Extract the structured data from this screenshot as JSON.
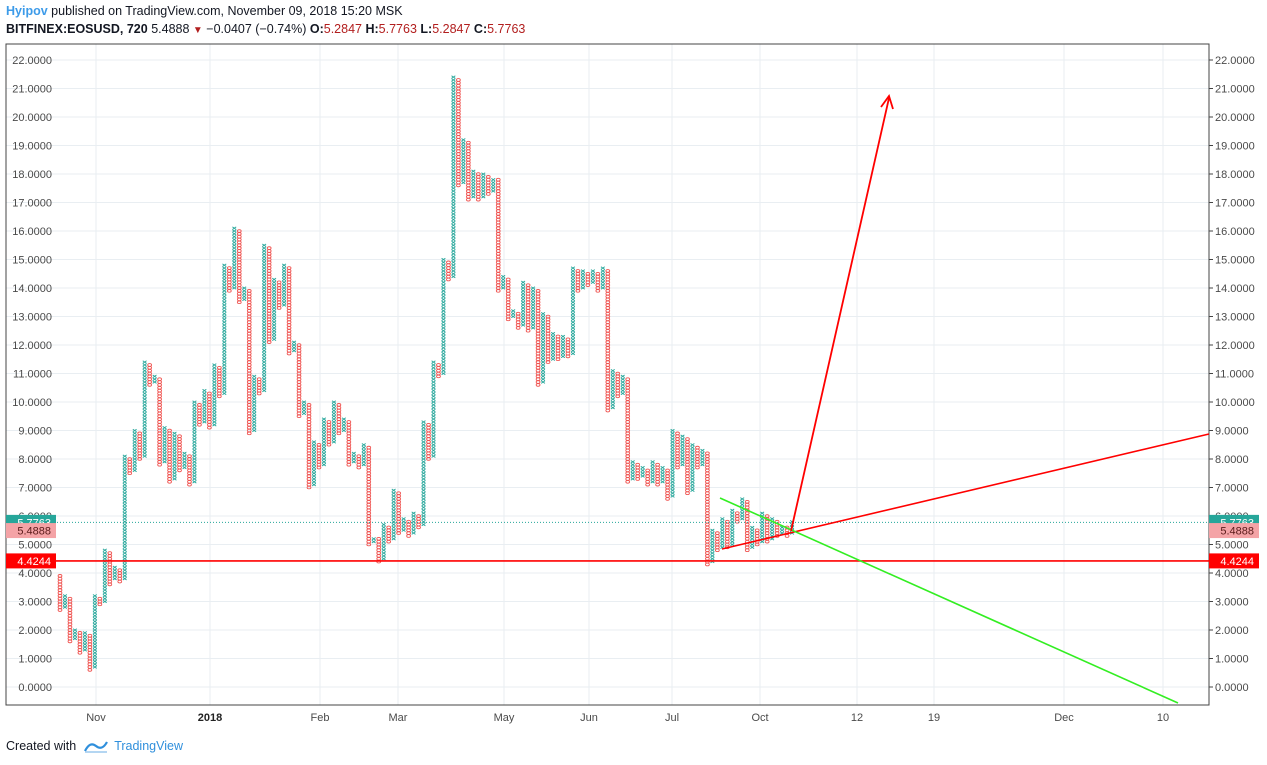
{
  "header": {
    "author": "Hyipov",
    "published_text": "published on TradingView.com, November 09, 2018 15:20 MSK",
    "symbol": "BITFINEX:EOSUSD, 720",
    "last": "5.4888",
    "change": "−0.0407 (−0.74%)",
    "o_label": "O:",
    "o_value": "5.2847",
    "h_label": "H:",
    "h_value": "5.7763",
    "l_label": "L:",
    "l_value": "5.2847",
    "c_label": "C:",
    "c_value": "5.7763"
  },
  "footer": {
    "created_with": "Created with",
    "brand": "TradingView"
  },
  "colors": {
    "up": "#26a69a",
    "down": "#ef5350",
    "trend_red": "#ff0000",
    "trend_green": "#33ee22",
    "grid": "#e9eef2",
    "tag_current": "#26a69a",
    "tag_prev": "#f4a3a6",
    "tag_level": "#ff0000"
  },
  "chart_data": {
    "type": "point-and-figure",
    "y_axis": {
      "ticks": [
        "0.0000",
        "1.0000",
        "2.0000",
        "3.0000",
        "4.0000",
        "5.0000",
        "6.0000",
        "7.0000",
        "8.0000",
        "9.0000",
        "10.0000",
        "11.0000",
        "12.0000",
        "13.0000",
        "14.0000",
        "15.0000",
        "16.0000",
        "17.0000",
        "18.0000",
        "19.0000",
        "20.0000",
        "21.0000",
        "22.0000"
      ],
      "range": [
        -0.4,
        22.5
      ]
    },
    "x_axis": {
      "ticks": [
        {
          "label": "Nov",
          "bold": false
        },
        {
          "label": "2018",
          "bold": true
        },
        {
          "label": "Feb",
          "bold": false
        },
        {
          "label": "Mar",
          "bold": false
        },
        {
          "label": "May",
          "bold": false
        },
        {
          "label": "Jun",
          "bold": false
        },
        {
          "label": "Jul",
          "bold": false
        },
        {
          "label": "Oct",
          "bold": false
        },
        {
          "label": "12",
          "bold": false
        },
        {
          "label": "19",
          "bold": false
        },
        {
          "label": "Dec",
          "bold": false
        },
        {
          "label": "10",
          "bold": false
        }
      ]
    },
    "price_tags": [
      {
        "value": 5.7763,
        "label": "5.7763",
        "kind": "current"
      },
      {
        "value": 5.4888,
        "label": "5.4888",
        "kind": "previous"
      },
      {
        "value": 4.4244,
        "label": "4.4244",
        "kind": "level"
      }
    ],
    "horizontal_line": 4.4244,
    "columns": [
      {
        "t": "O",
        "lo": 2.7,
        "hi": 3.9
      },
      {
        "t": "X",
        "lo": 2.8,
        "hi": 3.2
      },
      {
        "t": "O",
        "lo": 1.6,
        "hi": 3.1
      },
      {
        "t": "X",
        "lo": 1.7,
        "hi": 2.0
      },
      {
        "t": "O",
        "lo": 1.2,
        "hi": 1.9
      },
      {
        "t": "X",
        "lo": 1.3,
        "hi": 1.9
      },
      {
        "t": "O",
        "lo": 0.6,
        "hi": 1.8
      },
      {
        "t": "X",
        "lo": 0.7,
        "hi": 3.2
      },
      {
        "t": "O",
        "lo": 2.9,
        "hi": 3.1
      },
      {
        "t": "X",
        "lo": 3.0,
        "hi": 4.8
      },
      {
        "t": "O",
        "lo": 3.6,
        "hi": 4.7
      },
      {
        "t": "X",
        "lo": 3.8,
        "hi": 4.2
      },
      {
        "t": "O",
        "lo": 3.7,
        "hi": 4.1
      },
      {
        "t": "X",
        "lo": 3.8,
        "hi": 8.1
      },
      {
        "t": "O",
        "lo": 7.5,
        "hi": 8.0
      },
      {
        "t": "X",
        "lo": 7.6,
        "hi": 9.0
      },
      {
        "t": "O",
        "lo": 8.0,
        "hi": 8.9
      },
      {
        "t": "X",
        "lo": 8.1,
        "hi": 11.4
      },
      {
        "t": "O",
        "lo": 10.6,
        "hi": 11.3
      },
      {
        "t": "X",
        "lo": 10.7,
        "hi": 10.9
      },
      {
        "t": "O",
        "lo": 7.8,
        "hi": 10.8
      },
      {
        "t": "X",
        "lo": 7.9,
        "hi": 9.1
      },
      {
        "t": "O",
        "lo": 7.2,
        "hi": 9.0
      },
      {
        "t": "X",
        "lo": 7.3,
        "hi": 8.9
      },
      {
        "t": "O",
        "lo": 7.6,
        "hi": 8.8
      },
      {
        "t": "X",
        "lo": 7.7,
        "hi": 8.2
      },
      {
        "t": "O",
        "lo": 7.1,
        "hi": 8.1
      },
      {
        "t": "X",
        "lo": 7.2,
        "hi": 10.0
      },
      {
        "t": "O",
        "lo": 9.2,
        "hi": 9.9
      },
      {
        "t": "X",
        "lo": 9.3,
        "hi": 10.4
      },
      {
        "t": "O",
        "lo": 9.1,
        "hi": 10.3
      },
      {
        "t": "X",
        "lo": 9.2,
        "hi": 11.3
      },
      {
        "t": "O",
        "lo": 10.2,
        "hi": 11.2
      },
      {
        "t": "X",
        "lo": 10.3,
        "hi": 14.8
      },
      {
        "t": "O",
        "lo": 13.9,
        "hi": 14.7
      },
      {
        "t": "X",
        "lo": 14.0,
        "hi": 16.1
      },
      {
        "t": "O",
        "lo": 13.5,
        "hi": 16.0
      },
      {
        "t": "X",
        "lo": 13.6,
        "hi": 14.0
      },
      {
        "t": "O",
        "lo": 8.9,
        "hi": 13.9
      },
      {
        "t": "X",
        "lo": 9.0,
        "hi": 10.9
      },
      {
        "t": "O",
        "lo": 10.3,
        "hi": 10.8
      },
      {
        "t": "X",
        "lo": 10.4,
        "hi": 15.5
      },
      {
        "t": "O",
        "lo": 12.1,
        "hi": 15.4
      },
      {
        "t": "X",
        "lo": 12.2,
        "hi": 14.3
      },
      {
        "t": "O",
        "lo": 13.3,
        "hi": 14.2
      },
      {
        "t": "X",
        "lo": 13.4,
        "hi": 14.8
      },
      {
        "t": "O",
        "lo": 11.7,
        "hi": 14.7
      },
      {
        "t": "X",
        "lo": 11.8,
        "hi": 12.1
      },
      {
        "t": "O",
        "lo": 9.5,
        "hi": 12.0
      },
      {
        "t": "X",
        "lo": 9.6,
        "hi": 10.0
      },
      {
        "t": "O",
        "lo": 7.0,
        "hi": 9.9
      },
      {
        "t": "X",
        "lo": 7.1,
        "hi": 8.6
      },
      {
        "t": "O",
        "lo": 7.7,
        "hi": 8.5
      },
      {
        "t": "X",
        "lo": 7.8,
        "hi": 9.4
      },
      {
        "t": "O",
        "lo": 8.5,
        "hi": 9.3
      },
      {
        "t": "X",
        "lo": 8.6,
        "hi": 10.0
      },
      {
        "t": "O",
        "lo": 8.9,
        "hi": 9.9
      },
      {
        "t": "X",
        "lo": 9.0,
        "hi": 9.4
      },
      {
        "t": "O",
        "lo": 7.8,
        "hi": 9.3
      },
      {
        "t": "X",
        "lo": 7.9,
        "hi": 8.2
      },
      {
        "t": "O",
        "lo": 7.7,
        "hi": 8.1
      },
      {
        "t": "X",
        "lo": 7.8,
        "hi": 8.5
      },
      {
        "t": "O",
        "lo": 5.0,
        "hi": 8.4
      },
      {
        "t": "X",
        "lo": 5.1,
        "hi": 5.2
      },
      {
        "t": "O",
        "lo": 4.4,
        "hi": 5.2
      },
      {
        "t": "X",
        "lo": 4.5,
        "hi": 5.7
      },
      {
        "t": "O",
        "lo": 5.1,
        "hi": 5.6
      },
      {
        "t": "X",
        "lo": 5.2,
        "hi": 6.9
      },
      {
        "t": "O",
        "lo": 5.4,
        "hi": 6.8
      },
      {
        "t": "X",
        "lo": 5.5,
        "hi": 5.9
      },
      {
        "t": "O",
        "lo": 5.3,
        "hi": 5.8
      },
      {
        "t": "X",
        "lo": 5.4,
        "hi": 6.1
      },
      {
        "t": "O",
        "lo": 5.6,
        "hi": 6.0
      },
      {
        "t": "X",
        "lo": 5.7,
        "hi": 9.3
      },
      {
        "t": "O",
        "lo": 8.0,
        "hi": 9.2
      },
      {
        "t": "X",
        "lo": 8.1,
        "hi": 11.4
      },
      {
        "t": "O",
        "lo": 10.9,
        "hi": 11.3
      },
      {
        "t": "X",
        "lo": 11.0,
        "hi": 15.0
      },
      {
        "t": "O",
        "lo": 14.3,
        "hi": 14.9
      },
      {
        "t": "X",
        "lo": 14.4,
        "hi": 21.4
      },
      {
        "t": "O",
        "lo": 17.6,
        "hi": 21.3
      },
      {
        "t": "X",
        "lo": 17.7,
        "hi": 19.2
      },
      {
        "t": "O",
        "lo": 17.1,
        "hi": 19.1
      },
      {
        "t": "X",
        "lo": 17.2,
        "hi": 18.1
      },
      {
        "t": "O",
        "lo": 17.1,
        "hi": 18.0
      },
      {
        "t": "X",
        "lo": 17.2,
        "hi": 18.0
      },
      {
        "t": "O",
        "lo": 17.3,
        "hi": 17.9
      },
      {
        "t": "X",
        "lo": 17.4,
        "hi": 17.8
      },
      {
        "t": "O",
        "lo": 13.9,
        "hi": 17.8
      },
      {
        "t": "X",
        "lo": 14.0,
        "hi": 14.4
      },
      {
        "t": "O",
        "lo": 12.9,
        "hi": 14.3
      },
      {
        "t": "X",
        "lo": 13.0,
        "hi": 13.2
      },
      {
        "t": "O",
        "lo": 12.6,
        "hi": 13.1
      },
      {
        "t": "X",
        "lo": 12.7,
        "hi": 14.2
      },
      {
        "t": "O",
        "lo": 12.5,
        "hi": 14.1
      },
      {
        "t": "X",
        "lo": 12.6,
        "hi": 14.0
      },
      {
        "t": "O",
        "lo": 10.6,
        "hi": 13.9
      },
      {
        "t": "X",
        "lo": 10.7,
        "hi": 13.1
      },
      {
        "t": "O",
        "lo": 11.4,
        "hi": 13.0
      },
      {
        "t": "X",
        "lo": 11.5,
        "hi": 12.4
      },
      {
        "t": "O",
        "lo": 11.5,
        "hi": 12.3
      },
      {
        "t": "X",
        "lo": 11.6,
        "hi": 12.3
      },
      {
        "t": "O",
        "lo": 11.6,
        "hi": 12.2
      },
      {
        "t": "X",
        "lo": 11.7,
        "hi": 14.7
      },
      {
        "t": "O",
        "lo": 13.9,
        "hi": 14.6
      },
      {
        "t": "X",
        "lo": 14.0,
        "hi": 14.6
      },
      {
        "t": "O",
        "lo": 14.1,
        "hi": 14.5
      },
      {
        "t": "X",
        "lo": 14.2,
        "hi": 14.6
      },
      {
        "t": "O",
        "lo": 13.9,
        "hi": 14.5
      },
      {
        "t": "X",
        "lo": 14.0,
        "hi": 14.7
      },
      {
        "t": "O",
        "lo": 9.7,
        "hi": 14.6
      },
      {
        "t": "X",
        "lo": 9.8,
        "hi": 11.1
      },
      {
        "t": "O",
        "lo": 10.2,
        "hi": 11.0
      },
      {
        "t": "X",
        "lo": 10.3,
        "hi": 10.9
      },
      {
        "t": "O",
        "lo": 7.2,
        "hi": 10.8
      },
      {
        "t": "X",
        "lo": 7.3,
        "hi": 7.9
      },
      {
        "t": "O",
        "lo": 7.3,
        "hi": 7.8
      },
      {
        "t": "X",
        "lo": 7.4,
        "hi": 7.7
      },
      {
        "t": "O",
        "lo": 7.1,
        "hi": 7.6
      },
      {
        "t": "X",
        "lo": 7.2,
        "hi": 7.9
      },
      {
        "t": "O",
        "lo": 7.1,
        "hi": 7.8
      },
      {
        "t": "X",
        "lo": 7.2,
        "hi": 7.7
      },
      {
        "t": "O",
        "lo": 6.6,
        "hi": 7.6
      },
      {
        "t": "X",
        "lo": 6.7,
        "hi": 9.0
      },
      {
        "t": "O",
        "lo": 7.7,
        "hi": 8.9
      },
      {
        "t": "X",
        "lo": 7.8,
        "hi": 8.8
      },
      {
        "t": "O",
        "lo": 6.8,
        "hi": 8.7
      },
      {
        "t": "X",
        "lo": 6.9,
        "hi": 8.5
      },
      {
        "t": "O",
        "lo": 7.7,
        "hi": 8.4
      },
      {
        "t": "X",
        "lo": 7.8,
        "hi": 8.3
      },
      {
        "t": "O",
        "lo": 4.3,
        "hi": 8.2
      },
      {
        "t": "X",
        "lo": 4.4,
        "hi": 5.5
      },
      {
        "t": "O",
        "lo": 4.8,
        "hi": 5.4
      },
      {
        "t": "X",
        "lo": 4.9,
        "hi": 5.9
      },
      {
        "t": "O",
        "lo": 4.9,
        "hi": 5.8
      },
      {
        "t": "X",
        "lo": 5.0,
        "hi": 6.2
      },
      {
        "t": "O",
        "lo": 5.8,
        "hi": 6.1
      },
      {
        "t": "X",
        "lo": 5.9,
        "hi": 6.6
      },
      {
        "t": "O",
        "lo": 4.8,
        "hi": 6.5
      },
      {
        "t": "X",
        "lo": 4.9,
        "hi": 5.6
      },
      {
        "t": "O",
        "lo": 5.0,
        "hi": 5.5
      },
      {
        "t": "X",
        "lo": 5.1,
        "hi": 6.1
      },
      {
        "t": "O",
        "lo": 5.1,
        "hi": 6.0
      },
      {
        "t": "X",
        "lo": 5.2,
        "hi": 5.9
      },
      {
        "t": "O",
        "lo": 5.3,
        "hi": 5.8
      },
      {
        "t": "X",
        "lo": 5.4,
        "hi": 5.6
      },
      {
        "t": "O",
        "lo": 5.3,
        "hi": 5.6
      },
      {
        "t": "X",
        "lo": 5.4,
        "hi": 5.8
      }
    ]
  }
}
